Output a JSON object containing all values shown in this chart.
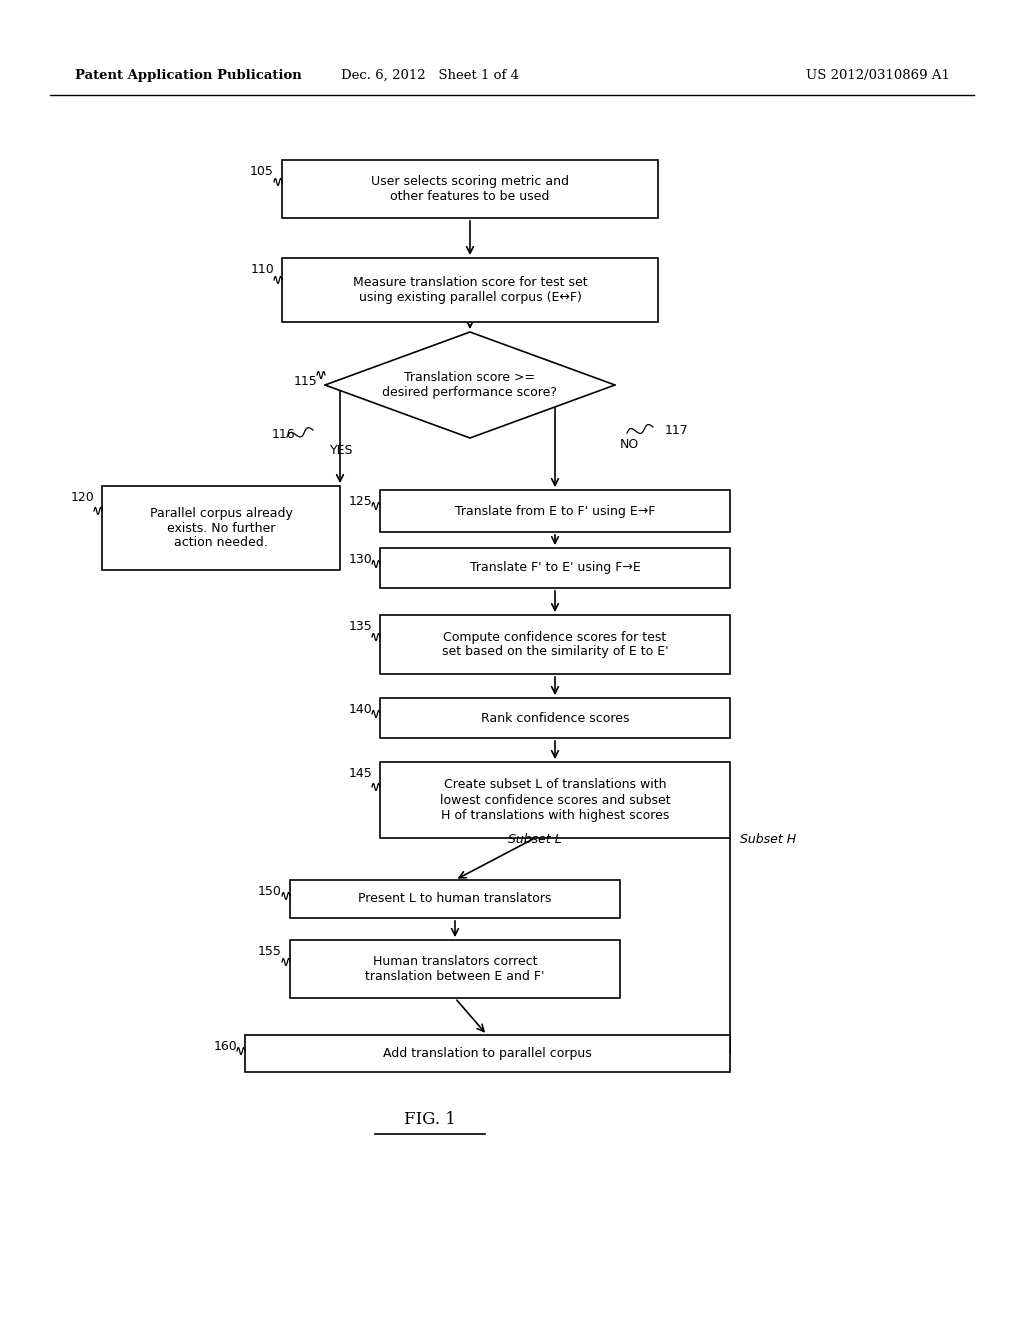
{
  "bg_color": "#ffffff",
  "header_left": "Patent Application Publication",
  "header_mid": "Dec. 6, 2012   Sheet 1 of 4",
  "header_right": "US 2012/0310869 A1"
}
